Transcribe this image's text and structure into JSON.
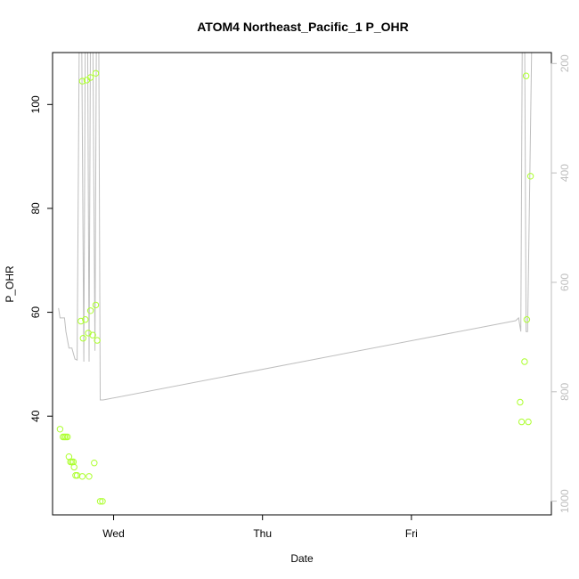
{
  "chart_data": {
    "type": "line",
    "title": "ATOM4 Northeast_Pacific_1 P_OHR",
    "xlabel": "Date",
    "ylabel": "P_OHR",
    "x_ticks": [
      "Wed",
      "Thu",
      "Fri"
    ],
    "x_range_days": [
      -0.41,
      2.94
    ],
    "ylim": [
      21,
      110
    ],
    "y_ticks": [
      40,
      60,
      80,
      100
    ],
    "y2_ticks": [
      200,
      400,
      600,
      800,
      1000
    ],
    "y2_range": [
      180,
      1025
    ],
    "y2_reversed": true,
    "colors": {
      "points": "#adff2f",
      "line": "#bebebe",
      "axis": "#000000",
      "right_axis": "#bebebe"
    },
    "series": [
      {
        "kind": "points",
        "axis": "left",
        "points": [
          [
            -0.36,
            37.5
          ],
          [
            -0.34,
            36
          ],
          [
            -0.33,
            36
          ],
          [
            -0.32,
            36
          ],
          [
            -0.31,
            36
          ],
          [
            -0.3,
            32.2
          ],
          [
            -0.29,
            31.2
          ],
          [
            -0.28,
            31.2
          ],
          [
            -0.27,
            31.2
          ],
          [
            -0.265,
            30.2
          ],
          [
            -0.255,
            28.6
          ],
          [
            -0.245,
            28.6
          ],
          [
            -0.22,
            58.3
          ],
          [
            -0.21,
            104.5
          ],
          [
            -0.205,
            55
          ],
          [
            -0.19,
            58.6
          ],
          [
            -0.18,
            104.7
          ],
          [
            -0.17,
            56
          ],
          [
            -0.155,
            60.3
          ],
          [
            -0.155,
            105.2
          ],
          [
            -0.21,
            28.4
          ],
          [
            -0.165,
            28.4
          ],
          [
            -0.14,
            55.6
          ],
          [
            -0.13,
            31
          ],
          [
            -0.12,
            106
          ],
          [
            -0.12,
            61.4
          ],
          [
            -0.11,
            54.6
          ],
          [
            -0.09,
            23.6
          ],
          [
            -0.075,
            23.6
          ],
          [
            2.73,
            42.7
          ],
          [
            2.74,
            38.9
          ],
          [
            2.76,
            50.5
          ],
          [
            2.77,
            105.5
          ],
          [
            2.775,
            58.6
          ],
          [
            2.785,
            38.9
          ],
          [
            2.8,
            86.2
          ]
        ]
      },
      {
        "kind": "line",
        "axis": "right",
        "points": [
          [
            -0.37,
            647
          ],
          [
            -0.36,
            665
          ],
          [
            -0.33,
            665
          ],
          [
            -0.32,
            690
          ],
          [
            -0.3,
            720
          ],
          [
            -0.28,
            720
          ],
          [
            -0.26,
            740
          ],
          [
            -0.245,
            742
          ],
          [
            -0.23,
            120
          ],
          [
            -0.215,
            120
          ],
          [
            -0.2,
            745
          ],
          [
            -0.19,
            120
          ],
          [
            -0.175,
            120
          ],
          [
            -0.165,
            745
          ],
          [
            -0.155,
            120
          ],
          [
            -0.14,
            120
          ],
          [
            -0.125,
            725
          ],
          [
            -0.115,
            120
          ],
          [
            -0.1,
            120
          ],
          [
            -0.09,
            815
          ],
          [
            -0.07,
            815
          ],
          [
            2.7,
            670
          ],
          [
            2.72,
            665
          ],
          [
            2.735,
            690
          ],
          [
            2.745,
            120
          ],
          [
            2.76,
            120
          ],
          [
            2.77,
            690
          ],
          [
            2.78,
            690
          ],
          [
            2.81,
            120
          ]
        ]
      }
    ]
  }
}
